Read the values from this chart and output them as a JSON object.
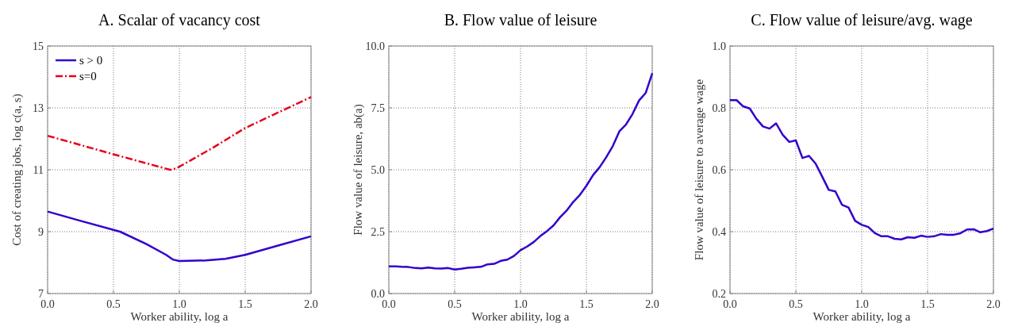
{
  "chart_data": [
    {
      "type": "line",
      "title": "A. Scalar of vacancy cost",
      "xlabel": "Worker ability, log a",
      "ylabel": "Cost of creating jobs, log c(a, s)",
      "xlim": [
        0,
        2
      ],
      "xticks": [
        {
          "value": 0,
          "label": "0.0"
        },
        {
          "value": 0.5,
          "label": "0.5"
        },
        {
          "value": 1,
          "label": "1.0"
        },
        {
          "value": 1.5,
          "label": "1.5"
        },
        {
          "value": 2,
          "label": "2.0"
        }
      ],
      "ylim": [
        7,
        15
      ],
      "yticks": [
        7,
        9,
        11,
        13,
        15
      ],
      "grid": true,
      "legend": "top left",
      "series": [
        {
          "name": "s > 0",
          "color": "#3300cc",
          "line_style": "solid",
          "x": [
            0,
            0.25,
            0.55,
            0.75,
            0.9,
            0.95,
            1.0,
            1.2,
            1.35,
            1.5,
            1.75,
            2.0
          ],
          "values": [
            9.65,
            9.35,
            9.0,
            8.6,
            8.25,
            8.1,
            8.05,
            8.07,
            8.12,
            8.25,
            8.55,
            8.85
          ]
        },
        {
          "name": "s=0",
          "color": "#e8001c",
          "line_style": "dashed",
          "x": [
            0,
            0.5,
            0.93,
            0.98,
            1.25,
            1.5,
            2.0
          ],
          "values": [
            12.1,
            11.5,
            11.0,
            11.05,
            11.7,
            12.35,
            13.35
          ]
        }
      ]
    },
    {
      "type": "line",
      "title": "B. Flow value of leisure",
      "xlabel": "Worker ability, log a",
      "ylabel": "Flow value of leisure, ab(a)",
      "xlim": [
        0,
        2
      ],
      "xticks": [
        {
          "value": 0,
          "label": "0.0"
        },
        {
          "value": 0.5,
          "label": "0.5"
        },
        {
          "value": 1,
          "label": "1.0"
        },
        {
          "value": 1.5,
          "label": "1.5"
        },
        {
          "value": 2,
          "label": "2.0"
        }
      ],
      "ylim": [
        0,
        10
      ],
      "yticks": [
        {
          "value": 0,
          "label": "0.0"
        },
        2.5,
        {
          "value": 5,
          "label": "5.0"
        },
        7.5,
        {
          "value": 10,
          "label": "10.0"
        }
      ],
      "grid": true,
      "series": [
        {
          "color": "#3300cc",
          "x": [
            0,
            0.05,
            0.1,
            0.15,
            0.2,
            0.25,
            0.3,
            0.35,
            0.4,
            0.45,
            0.5,
            0.55,
            0.6,
            0.65,
            0.7,
            0.75,
            0.8,
            0.85,
            0.9,
            0.95,
            1.0,
            1.05,
            1.1,
            1.15,
            1.2,
            1.25,
            1.3,
            1.35,
            1.4,
            1.45,
            1.5,
            1.55,
            1.6,
            1.65,
            1.7,
            1.75,
            1.8,
            1.85,
            1.9,
            1.95,
            2.0
          ],
          "values": [
            1.1,
            1.1,
            1.08,
            1.07,
            1.03,
            1.02,
            1.05,
            1.02,
            1.01,
            1.03,
            0.97,
            1.0,
            1.04,
            1.06,
            1.08,
            1.18,
            1.2,
            1.32,
            1.37,
            1.52,
            1.75,
            1.9,
            2.08,
            2.32,
            2.52,
            2.75,
            3.08,
            3.35,
            3.7,
            3.98,
            4.35,
            4.78,
            5.1,
            5.5,
            5.95,
            6.55,
            6.82,
            7.25,
            7.8,
            8.1,
            8.9
          ]
        }
      ]
    },
    {
      "type": "line",
      "title": "C. Flow value of leisure/avg. wage",
      "xlabel": "Worker ability, log a",
      "ylabel": "Flow value of leisure to average wage",
      "xlim": [
        0,
        2
      ],
      "xticks": [
        {
          "value": 0,
          "label": "0.0"
        },
        {
          "value": 0.5,
          "label": "0.5"
        },
        {
          "value": 1,
          "label": "1.0"
        },
        {
          "value": 1.5,
          "label": "1.5"
        },
        {
          "value": 2,
          "label": "2.0"
        }
      ],
      "ylim": [
        0.2,
        1
      ],
      "yticks": [
        0.2,
        0.4,
        0.6,
        0.8,
        {
          "value": 1,
          "label": "1.0"
        }
      ],
      "grid": true,
      "series": [
        {
          "color": "#3300cc",
          "x": [
            0,
            0.05,
            0.1,
            0.15,
            0.2,
            0.25,
            0.3,
            0.35,
            0.4,
            0.45,
            0.5,
            0.55,
            0.6,
            0.65,
            0.7,
            0.75,
            0.8,
            0.85,
            0.9,
            0.95,
            1.0,
            1.05,
            1.1,
            1.15,
            1.2,
            1.25,
            1.3,
            1.35,
            1.4,
            1.45,
            1.5,
            1.55,
            1.6,
            1.65,
            1.7,
            1.75,
            1.8,
            1.85,
            1.9,
            1.95,
            2.0
          ],
          "values": [
            0.825,
            0.825,
            0.805,
            0.798,
            0.765,
            0.74,
            0.733,
            0.75,
            0.713,
            0.69,
            0.695,
            0.638,
            0.645,
            0.62,
            0.578,
            0.535,
            0.53,
            0.487,
            0.478,
            0.435,
            0.422,
            0.415,
            0.395,
            0.385,
            0.385,
            0.377,
            0.375,
            0.382,
            0.38,
            0.387,
            0.383,
            0.385,
            0.392,
            0.39,
            0.39,
            0.395,
            0.407,
            0.408,
            0.398,
            0.402,
            0.41
          ]
        }
      ]
    }
  ]
}
